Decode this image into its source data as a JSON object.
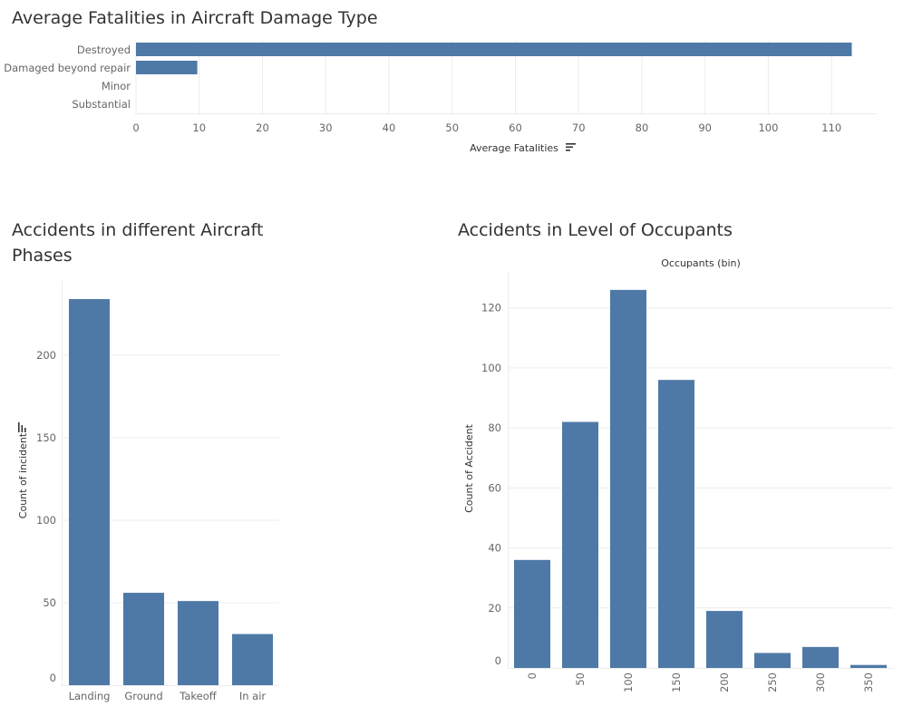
{
  "colors": {
    "bar": "#4e79a7",
    "grid": "#ececec"
  },
  "chart_data": [
    {
      "type": "bar",
      "orientation": "horizontal",
      "title": "Average Fatalities in Aircraft Damage Type",
      "categories": [
        "Destroyed",
        "Damaged beyond repair",
        "Minor",
        "Substantial"
      ],
      "values": [
        113.2,
        9.7,
        0,
        0
      ],
      "xlabel": "Average Fatalities",
      "xticks": [
        0,
        10,
        20,
        30,
        40,
        50,
        60,
        70,
        80,
        90,
        100,
        110
      ],
      "xlim": [
        0,
        117
      ],
      "sort_icon": "sort-descending-icon",
      "grid": true
    },
    {
      "type": "bar",
      "orientation": "vertical",
      "title": "Accidents in different Aircraft Phases",
      "categories": [
        "Landing",
        "Ground",
        "Takeoff",
        "In air"
      ],
      "values": [
        234,
        56,
        51,
        31
      ],
      "ylabel": "Count of incident",
      "yticks": [
        0,
        50,
        100,
        150,
        200
      ],
      "ylim": [
        0,
        245
      ],
      "sort_icon": "sort-descending-icon",
      "grid": true
    },
    {
      "type": "bar",
      "orientation": "vertical",
      "title": "Accidents in Level of Occupants",
      "xlabel": "Occupants (bin)",
      "categories": [
        "0",
        "50",
        "100",
        "150",
        "200",
        "250",
        "300",
        "350"
      ],
      "values": [
        36,
        82,
        126,
        96,
        19,
        5,
        7,
        1
      ],
      "ylabel": "Count of Accident",
      "yticks": [
        0,
        20,
        40,
        60,
        80,
        100,
        120
      ],
      "ylim": [
        0,
        132
      ],
      "grid": true
    }
  ]
}
